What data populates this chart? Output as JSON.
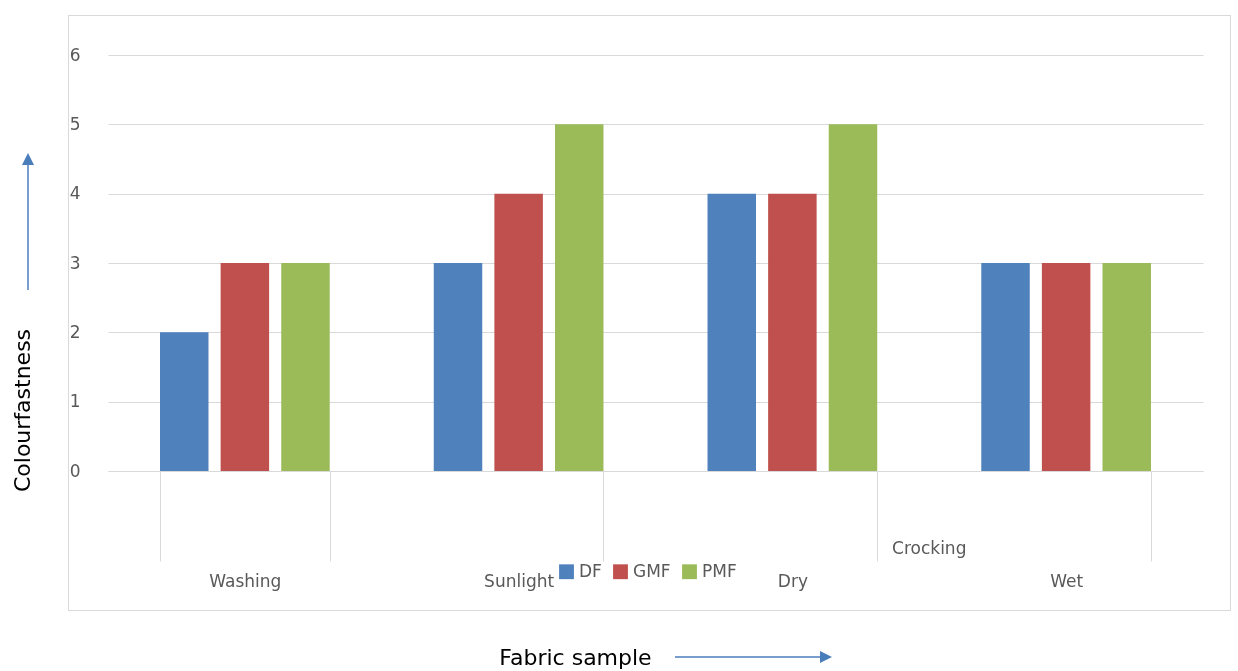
{
  "chart_data": {
    "type": "bar",
    "xlabel": "Fabric sample",
    "ylabel": "Colourfastness",
    "categories": [
      "Washing",
      "Sunlight",
      "Dry",
      "Wet"
    ],
    "series": [
      {
        "name": "DF",
        "color": "#4f81bd",
        "values": [
          2,
          3,
          4,
          3
        ]
      },
      {
        "name": "GMF",
        "color": "#c0504d",
        "values": [
          3,
          4,
          4,
          3
        ]
      },
      {
        "name": "PMF",
        "color": "#9bbb59",
        "values": [
          3,
          5,
          5,
          3
        ]
      }
    ],
    "ylim": [
      0,
      6
    ],
    "yticks": [
      0,
      1,
      2,
      3,
      4,
      5,
      6
    ],
    "grid": "y",
    "legend": "bottom",
    "annotations": [
      "Crocking"
    ]
  }
}
